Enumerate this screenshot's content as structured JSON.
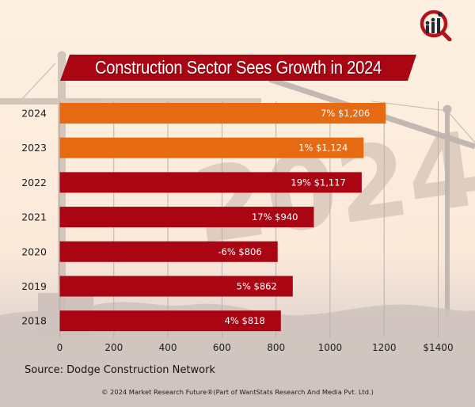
{
  "colors": {
    "highlight": "#E66A12",
    "primary": "#A90513",
    "grid": "#b9b0ab",
    "title_bg": "#A90513"
  },
  "logo": {
    "icon": "magnifier-bar-chart-logo"
  },
  "chart_data": {
    "type": "bar",
    "orientation": "horizontal",
    "title": "Construction Sector Sees Growth in 2024",
    "categories": [
      "2024",
      "2023",
      "2022",
      "2021",
      "2020",
      "2019",
      "2018"
    ],
    "values": [
      1206,
      1124,
      1117,
      940,
      806,
      862,
      818
    ],
    "growth_pct": [
      "7%",
      "1%",
      "19%",
      "17%",
      "-6%",
      "5%",
      "4%"
    ],
    "data_labels": [
      "7% $1,206",
      "1% $1,124",
      "19% $1,117",
      "17% $940",
      "-6% $806",
      "5% $862",
      "4% $818"
    ],
    "highlighted": [
      true,
      true,
      false,
      false,
      false,
      false,
      false
    ],
    "xlabel": "",
    "ylabel": "",
    "xlim": [
      0,
      1400
    ],
    "xticks": [
      0,
      200,
      400,
      600,
      800,
      1000,
      1200,
      1400
    ],
    "xtick_labels": [
      "0",
      "200",
      "400",
      "600",
      "800",
      "1000",
      "1200",
      "$1400"
    ],
    "grid": "vertical",
    "legend": "none"
  },
  "footer": {
    "source": "Source: Dodge Construction Network",
    "copyright": "© 2024 Market Research Future®(Part of WantStats Research And Media Pvt. Ltd.)"
  }
}
